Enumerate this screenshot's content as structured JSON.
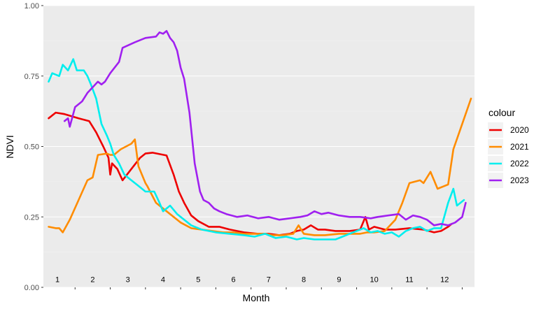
{
  "chart_data": {
    "type": "line",
    "xlabel": "Month",
    "ylabel": "NDVI",
    "ylim": [
      0,
      1
    ],
    "y_ticks": [
      "0.00",
      "0.25",
      "0.50",
      "0.75",
      "1.00"
    ],
    "month_labels": [
      "1",
      "2",
      "3",
      "4",
      "5",
      "6",
      "7",
      "8",
      "9",
      "10",
      "11",
      "12"
    ],
    "x_unit": "month (continuous, 1 = January)",
    "xlim": [
      0.6,
      12.85
    ],
    "grid": true,
    "legend": {
      "title": "colour",
      "position": "right"
    },
    "series": [
      {
        "name": "2020",
        "color": "#ee0000",
        "points": [
          [
            0.75,
            0.6
          ],
          [
            0.95,
            0.62
          ],
          [
            1.2,
            0.615
          ],
          [
            1.6,
            0.6
          ],
          [
            1.9,
            0.59
          ],
          [
            2.1,
            0.55
          ],
          [
            2.3,
            0.5
          ],
          [
            2.45,
            0.46
          ],
          [
            2.5,
            0.4
          ],
          [
            2.55,
            0.44
          ],
          [
            2.7,
            0.42
          ],
          [
            2.85,
            0.38
          ],
          [
            3.1,
            0.42
          ],
          [
            3.35,
            0.46
          ],
          [
            3.5,
            0.475
          ],
          [
            3.7,
            0.478
          ],
          [
            4.1,
            0.468
          ],
          [
            4.3,
            0.4
          ],
          [
            4.45,
            0.34
          ],
          [
            4.6,
            0.3
          ],
          [
            4.8,
            0.255
          ],
          [
            5.0,
            0.235
          ],
          [
            5.3,
            0.215
          ],
          [
            5.6,
            0.215
          ],
          [
            5.9,
            0.205
          ],
          [
            6.3,
            0.195
          ],
          [
            6.7,
            0.19
          ],
          [
            7.0,
            0.19
          ],
          [
            7.3,
            0.185
          ],
          [
            7.6,
            0.19
          ],
          [
            7.8,
            0.2
          ],
          [
            8.0,
            0.205
          ],
          [
            8.2,
            0.22
          ],
          [
            8.4,
            0.205
          ],
          [
            8.6,
            0.205
          ],
          [
            8.9,
            0.2
          ],
          [
            9.3,
            0.2
          ],
          [
            9.6,
            0.205
          ],
          [
            9.75,
            0.25
          ],
          [
            9.85,
            0.205
          ],
          [
            10.0,
            0.215
          ],
          [
            10.3,
            0.205
          ],
          [
            10.6,
            0.205
          ],
          [
            11.0,
            0.21
          ],
          [
            11.4,
            0.205
          ],
          [
            11.7,
            0.195
          ],
          [
            11.9,
            0.2
          ],
          [
            12.1,
            0.215
          ],
          [
            12.2,
            0.225
          ]
        ]
      },
      {
        "name": "2021",
        "color": "#ff8c00",
        "points": [
          [
            0.75,
            0.215
          ],
          [
            0.95,
            0.21
          ],
          [
            1.05,
            0.21
          ],
          [
            1.15,
            0.195
          ],
          [
            1.35,
            0.24
          ],
          [
            1.6,
            0.31
          ],
          [
            1.85,
            0.38
          ],
          [
            2.0,
            0.39
          ],
          [
            2.15,
            0.47
          ],
          [
            2.4,
            0.475
          ],
          [
            2.5,
            0.47
          ],
          [
            2.6,
            0.47
          ],
          [
            2.8,
            0.49
          ],
          [
            3.1,
            0.51
          ],
          [
            3.2,
            0.525
          ],
          [
            3.3,
            0.43
          ],
          [
            3.5,
            0.37
          ],
          [
            3.55,
            0.36
          ],
          [
            3.8,
            0.3
          ],
          [
            4.0,
            0.28
          ],
          [
            4.2,
            0.26
          ],
          [
            4.5,
            0.23
          ],
          [
            4.8,
            0.21
          ],
          [
            5.1,
            0.205
          ],
          [
            5.4,
            0.2
          ],
          [
            5.7,
            0.195
          ],
          [
            6.0,
            0.195
          ],
          [
            6.3,
            0.19
          ],
          [
            6.6,
            0.19
          ],
          [
            6.9,
            0.19
          ],
          [
            7.1,
            0.185
          ],
          [
            7.4,
            0.185
          ],
          [
            7.7,
            0.19
          ],
          [
            7.85,
            0.22
          ],
          [
            8.0,
            0.19
          ],
          [
            8.3,
            0.185
          ],
          [
            8.6,
            0.185
          ],
          [
            9.0,
            0.19
          ],
          [
            9.3,
            0.19
          ],
          [
            9.6,
            0.19
          ],
          [
            9.8,
            0.195
          ],
          [
            10.0,
            0.195
          ],
          [
            10.3,
            0.2
          ],
          [
            10.6,
            0.24
          ],
          [
            10.8,
            0.3
          ],
          [
            11.0,
            0.37
          ],
          [
            11.3,
            0.38
          ],
          [
            11.4,
            0.37
          ],
          [
            11.6,
            0.41
          ],
          [
            11.7,
            0.38
          ],
          [
            11.8,
            0.35
          ],
          [
            12.0,
            0.36
          ],
          [
            12.1,
            0.365
          ],
          [
            12.25,
            0.49
          ],
          [
            12.5,
            0.58
          ],
          [
            12.75,
            0.67
          ]
        ]
      },
      {
        "name": "2022",
        "color": "#00eeee",
        "points": [
          [
            0.75,
            0.73
          ],
          [
            0.85,
            0.76
          ],
          [
            1.05,
            0.75
          ],
          [
            1.15,
            0.79
          ],
          [
            1.3,
            0.77
          ],
          [
            1.45,
            0.81
          ],
          [
            1.55,
            0.77
          ],
          [
            1.75,
            0.77
          ],
          [
            1.85,
            0.75
          ],
          [
            1.95,
            0.72
          ],
          [
            2.1,
            0.67
          ],
          [
            2.25,
            0.58
          ],
          [
            2.4,
            0.54
          ],
          [
            2.5,
            0.51
          ],
          [
            2.6,
            0.47
          ],
          [
            2.75,
            0.44
          ],
          [
            2.9,
            0.4
          ],
          [
            3.1,
            0.38
          ],
          [
            3.3,
            0.36
          ],
          [
            3.5,
            0.34
          ],
          [
            3.75,
            0.34
          ],
          [
            3.9,
            0.3
          ],
          [
            4.0,
            0.27
          ],
          [
            4.2,
            0.29
          ],
          [
            4.4,
            0.26
          ],
          [
            4.6,
            0.24
          ],
          [
            4.8,
            0.22
          ],
          [
            5.1,
            0.205
          ],
          [
            5.5,
            0.195
          ],
          [
            5.9,
            0.19
          ],
          [
            6.3,
            0.185
          ],
          [
            6.6,
            0.18
          ],
          [
            6.9,
            0.19
          ],
          [
            7.2,
            0.175
          ],
          [
            7.5,
            0.18
          ],
          [
            7.8,
            0.17
          ],
          [
            8.0,
            0.175
          ],
          [
            8.3,
            0.17
          ],
          [
            8.6,
            0.17
          ],
          [
            8.9,
            0.17
          ],
          [
            9.1,
            0.18
          ],
          [
            9.3,
            0.19
          ],
          [
            9.5,
            0.2
          ],
          [
            9.7,
            0.21
          ],
          [
            9.9,
            0.195
          ],
          [
            10.1,
            0.2
          ],
          [
            10.3,
            0.19
          ],
          [
            10.5,
            0.195
          ],
          [
            10.7,
            0.18
          ],
          [
            10.9,
            0.2
          ],
          [
            11.1,
            0.21
          ],
          [
            11.3,
            0.215
          ],
          [
            11.5,
            0.2
          ],
          [
            11.7,
            0.21
          ],
          [
            11.9,
            0.21
          ],
          [
            12.1,
            0.3
          ],
          [
            12.25,
            0.35
          ],
          [
            12.35,
            0.29
          ],
          [
            12.55,
            0.31
          ]
        ]
      },
      {
        "name": "2023",
        "color": "#a020f0",
        "points": [
          [
            1.2,
            0.59
          ],
          [
            1.3,
            0.6
          ],
          [
            1.35,
            0.57
          ],
          [
            1.5,
            0.64
          ],
          [
            1.7,
            0.66
          ],
          [
            1.85,
            0.69
          ],
          [
            2.0,
            0.71
          ],
          [
            2.15,
            0.73
          ],
          [
            2.25,
            0.72
          ],
          [
            2.35,
            0.73
          ],
          [
            2.5,
            0.76
          ],
          [
            2.75,
            0.8
          ],
          [
            2.85,
            0.85
          ],
          [
            3.2,
            0.87
          ],
          [
            3.5,
            0.885
          ],
          [
            3.8,
            0.89
          ],
          [
            3.9,
            0.905
          ],
          [
            4.0,
            0.9
          ],
          [
            4.1,
            0.91
          ],
          [
            4.2,
            0.885
          ],
          [
            4.3,
            0.87
          ],
          [
            4.4,
            0.84
          ],
          [
            4.5,
            0.78
          ],
          [
            4.6,
            0.74
          ],
          [
            4.75,
            0.62
          ],
          [
            4.9,
            0.44
          ],
          [
            5.05,
            0.34
          ],
          [
            5.15,
            0.31
          ],
          [
            5.3,
            0.3
          ],
          [
            5.45,
            0.28
          ],
          [
            5.6,
            0.27
          ],
          [
            5.8,
            0.26
          ],
          [
            6.1,
            0.25
          ],
          [
            6.4,
            0.255
          ],
          [
            6.7,
            0.245
          ],
          [
            7.0,
            0.25
          ],
          [
            7.3,
            0.24
          ],
          [
            7.6,
            0.245
          ],
          [
            7.9,
            0.25
          ],
          [
            8.1,
            0.255
          ],
          [
            8.3,
            0.27
          ],
          [
            8.5,
            0.26
          ],
          [
            8.7,
            0.265
          ],
          [
            9.0,
            0.255
          ],
          [
            9.3,
            0.25
          ],
          [
            9.6,
            0.25
          ],
          [
            9.9,
            0.245
          ],
          [
            10.1,
            0.25
          ],
          [
            10.4,
            0.255
          ],
          [
            10.7,
            0.26
          ],
          [
            10.9,
            0.24
          ],
          [
            11.1,
            0.255
          ],
          [
            11.3,
            0.25
          ],
          [
            11.5,
            0.24
          ],
          [
            11.7,
            0.22
          ],
          [
            11.9,
            0.225
          ],
          [
            12.1,
            0.22
          ],
          [
            12.3,
            0.23
          ],
          [
            12.5,
            0.25
          ],
          [
            12.6,
            0.3
          ]
        ]
      }
    ]
  }
}
